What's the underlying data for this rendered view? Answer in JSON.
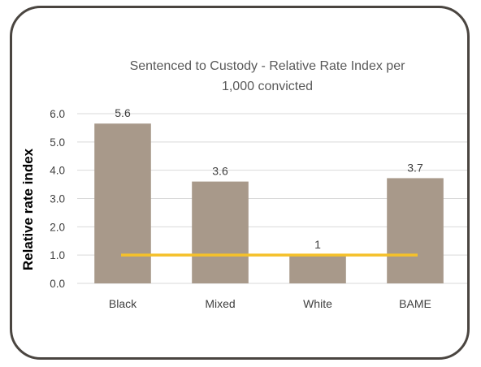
{
  "chart_data": {
    "type": "bar",
    "title_lines": [
      "Sentenced to Custody - Relative Rate Index per",
      "1,000 convicted"
    ],
    "xlabel": "",
    "ylabel": "Relative rate index",
    "categories": [
      "Black",
      "Mixed",
      "White",
      "BAME"
    ],
    "values": [
      5.65,
      3.6,
      1.0,
      3.72
    ],
    "data_labels": [
      "5.6",
      "3.6",
      "1",
      "3.7"
    ],
    "yticks": [
      "0.0",
      "1.0",
      "2.0",
      "3.0",
      "4.0",
      "5.0",
      "6.0"
    ],
    "ylim": [
      0,
      6
    ],
    "grid": true,
    "reference_line": {
      "value": 1.0,
      "color": "#f5c12a"
    },
    "colors": {
      "bar": "#a8998a",
      "grid": "#d9d9d9",
      "frame": "#4a4540",
      "axis_text": "#404040"
    }
  }
}
